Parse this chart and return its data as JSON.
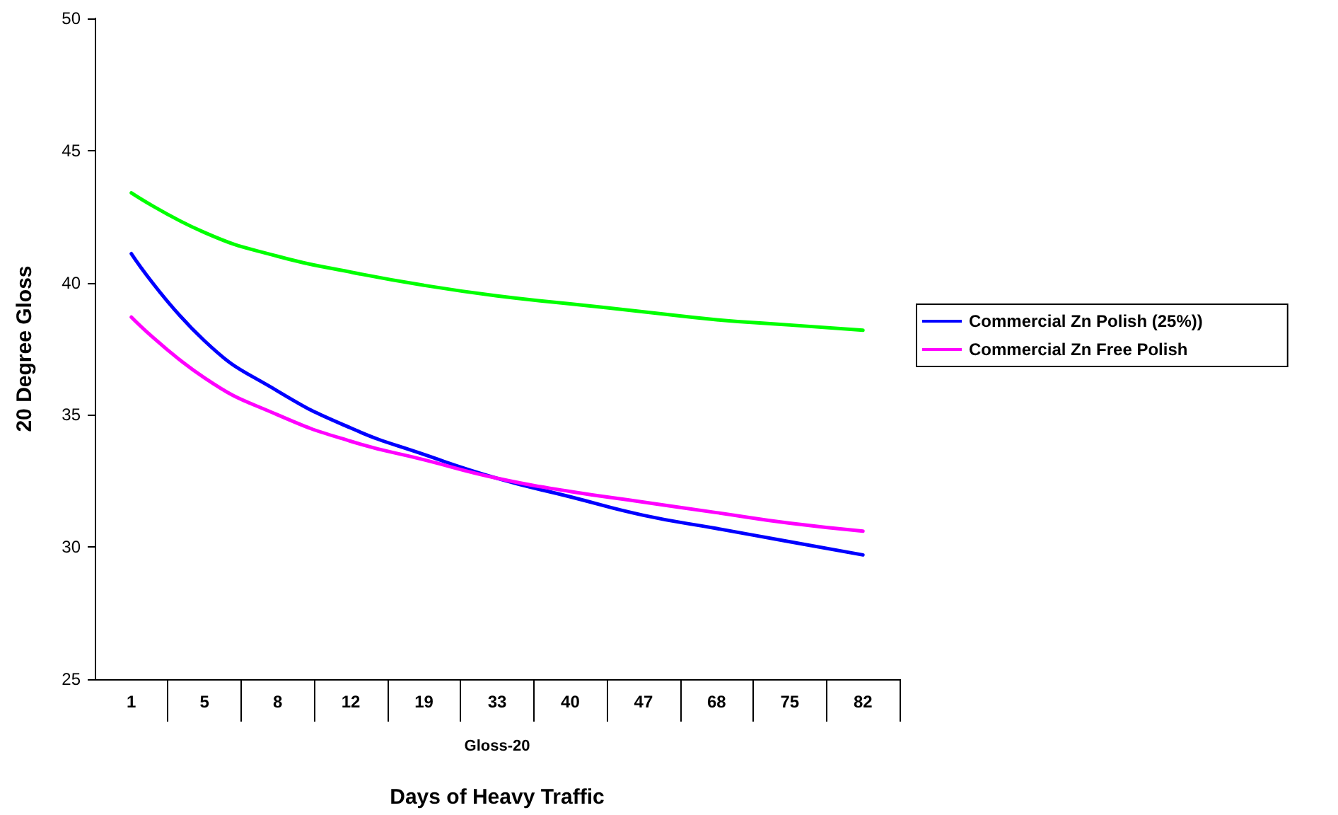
{
  "chart_data": {
    "type": "line",
    "categories": [
      "1",
      "5",
      "8",
      "12",
      "19",
      "33",
      "40",
      "47",
      "68",
      "75",
      "82"
    ],
    "series": [
      {
        "name": "Commercial Zn Polish (25%))",
        "color": "#0000ff",
        "values": [
          41.1,
          37.8,
          35.9,
          34.5,
          33.5,
          32.6,
          31.9,
          31.2,
          30.7,
          30.2,
          29.7
        ]
      },
      {
        "color": "#00ff00",
        "values": [
          43.4,
          41.9,
          41.0,
          40.4,
          39.9,
          39.5,
          39.2,
          38.9,
          38.6,
          38.4,
          38.2
        ]
      },
      {
        "name": "Commercial Zn Free Polish",
        "color": "#ff00ff",
        "values": [
          38.7,
          36.4,
          35.0,
          34.0,
          33.3,
          32.6,
          32.1,
          31.7,
          31.3,
          30.9,
          30.6
        ]
      }
    ],
    "xlabel": "Days of Heavy Traffic",
    "ylabel": "20 Degree Gloss",
    "annotations": [
      "Gloss-20"
    ],
    "ylim": [
      25,
      50
    ],
    "yticks": [
      25,
      30,
      35,
      40,
      45,
      50
    ],
    "legend": "right",
    "marker": "none",
    "line_style": "solid"
  }
}
